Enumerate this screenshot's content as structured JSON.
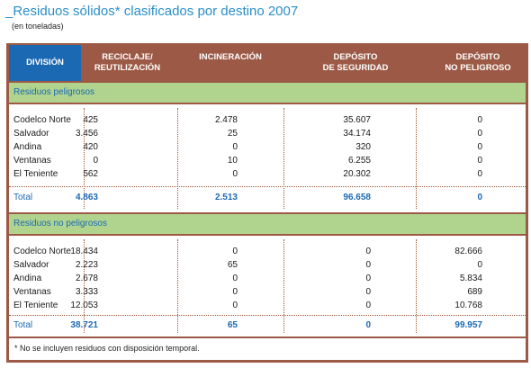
{
  "title": "_Residuos sólidos* clasificados por destino 2007",
  "subtitle": "(en toneladas)",
  "headers": {
    "division": "DIVISIÓN",
    "reciclaje": "RECICLAJE/\nREUTILIZACIÓN",
    "incineracion": "INCINERACIÓN",
    "deposito_seguridad": "DEPÓSITO\nDE SEGURIDAD",
    "deposito_no_peligroso": "DEPÓSITO\nNO PELIGROSO"
  },
  "colors": {
    "frame": "#9c5a46",
    "header_division": "#1c69b3",
    "section_band": "#b0d48e",
    "accent_blue": "#1c69b3",
    "title_blue": "#2a8ec8"
  },
  "sections": [
    {
      "label": "Residuos peligrosos",
      "rows": [
        {
          "name": "Codelco Norte",
          "rec": "425",
          "inc": "2.478",
          "dep": "35.607",
          "nop": "0"
        },
        {
          "name": "Salvador",
          "rec": "3.456",
          "inc": "25",
          "dep": "34.174",
          "nop": "0"
        },
        {
          "name": "Andina",
          "rec": "420",
          "inc": "0",
          "dep": "320",
          "nop": "0"
        },
        {
          "name": "Ventanas",
          "rec": "0",
          "inc": "10",
          "dep": "6.255",
          "nop": "0"
        },
        {
          "name": "El Teniente",
          "rec": "562",
          "inc": "0",
          "dep": "20.302",
          "nop": "0"
        }
      ],
      "total": {
        "name": "Total",
        "rec": "4.863",
        "inc": "2.513",
        "dep": "96.658",
        "nop": "0"
      }
    },
    {
      "label": "Residuos no peligrosos",
      "rows": [
        {
          "name": "Codelco Norte",
          "rec": "18.434",
          "inc": "0",
          "dep": "0",
          "nop": "82.666"
        },
        {
          "name": "Salvador",
          "rec": "2.223",
          "inc": "65",
          "dep": "0",
          "nop": "0"
        },
        {
          "name": "Andina",
          "rec": "2.678",
          "inc": "0",
          "dep": "0",
          "nop": "5.834"
        },
        {
          "name": "Ventanas",
          "rec": "3.333",
          "inc": "0",
          "dep": "0",
          "nop": "689"
        },
        {
          "name": "El Teniente",
          "rec": "12.053",
          "inc": "0",
          "dep": "0",
          "nop": "10.768"
        }
      ],
      "total": {
        "name": "Total",
        "rec": "38.721",
        "inc": "65",
        "dep": "0",
        "nop": "99.957"
      }
    }
  ],
  "footnote": "* No se incluyen residuos con disposición temporal."
}
